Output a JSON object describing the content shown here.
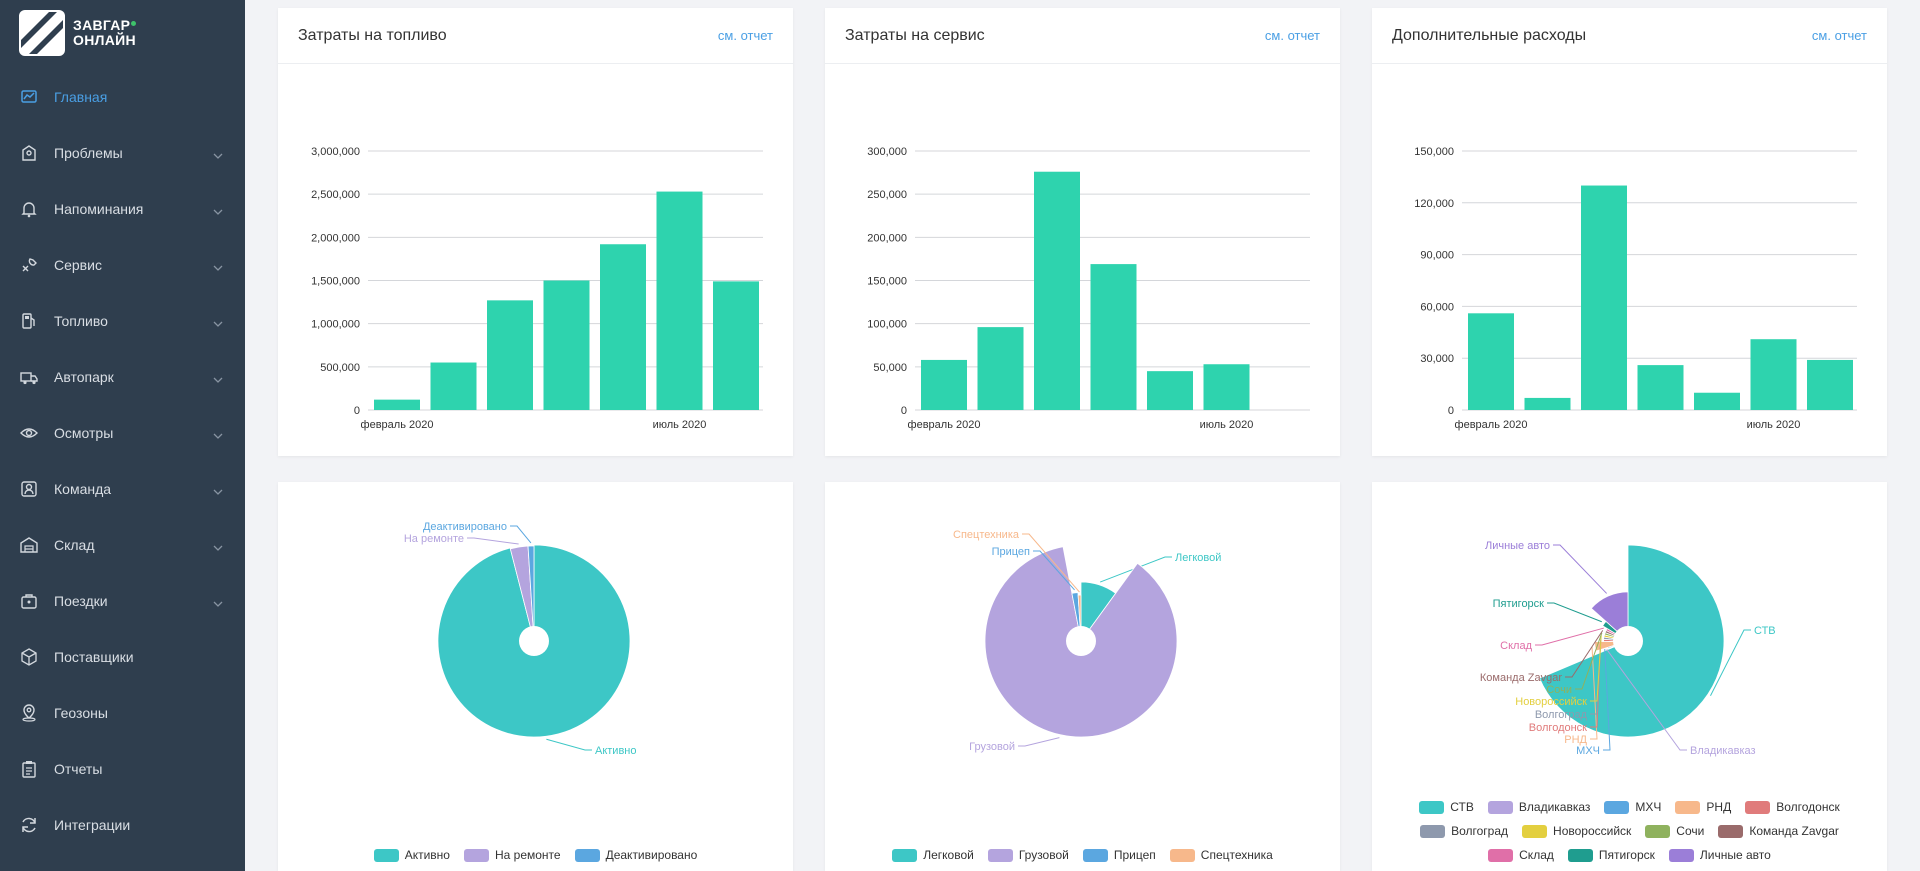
{
  "app": {
    "logo_line1": "ЗАВГАР",
    "logo_line2": "ОНЛАЙН",
    "accent": "#4a9fe4",
    "sidebar_bg": "#2f3e4e",
    "bar_color": "#2ed3ae"
  },
  "sidebar": {
    "items": [
      {
        "label": "Главная",
        "icon": "dashboard-icon",
        "active": true,
        "chevron": false
      },
      {
        "label": "Проблемы",
        "icon": "problems-icon",
        "active": false,
        "chevron": true
      },
      {
        "label": "Напоминания",
        "icon": "bell-icon",
        "active": false,
        "chevron": true
      },
      {
        "label": "Сервис",
        "icon": "service-icon",
        "active": false,
        "chevron": true
      },
      {
        "label": "Топливо",
        "icon": "fuel-icon",
        "active": false,
        "chevron": true
      },
      {
        "label": "Автопарк",
        "icon": "truck-icon",
        "active": false,
        "chevron": true
      },
      {
        "label": "Осмотры",
        "icon": "eye-icon",
        "active": false,
        "chevron": true
      },
      {
        "label": "Команда",
        "icon": "team-icon",
        "active": false,
        "chevron": true
      },
      {
        "label": "Склад",
        "icon": "warehouse-icon",
        "active": false,
        "chevron": true
      },
      {
        "label": "Поездки",
        "icon": "trips-icon",
        "active": false,
        "chevron": true
      },
      {
        "label": "Поставщики",
        "icon": "box-icon",
        "active": false,
        "chevron": false
      },
      {
        "label": "Геозоны",
        "icon": "geozone-icon",
        "active": false,
        "chevron": false
      },
      {
        "label": "Отчеты",
        "icon": "clipboard-icon",
        "active": false,
        "chevron": false
      },
      {
        "label": "Интеграции",
        "icon": "sync-icon",
        "active": false,
        "chevron": false
      }
    ]
  },
  "cards": [
    {
      "title": "Затраты на топливо",
      "link": "см. отчет"
    },
    {
      "title": "Затраты на сервис",
      "link": "см. отчет"
    },
    {
      "title": "Дополнительные расходы",
      "link": "см. отчет"
    }
  ],
  "chart_data": [
    {
      "type": "bar",
      "title": "Затраты на топливо",
      "categories": [
        "февраль 2020",
        "",
        "",
        "",
        "",
        "июль 2020",
        ""
      ],
      "values": [
        120000,
        550000,
        1270000,
        1500000,
        1920000,
        2530000,
        1490000
      ],
      "ylim": [
        0,
        3000000
      ],
      "yticks": [
        0,
        500000,
        1000000,
        1500000,
        2000000,
        2500000,
        3000000
      ],
      "ytick_labels": [
        "0",
        "500,000",
        "1,000,000",
        "1,500,000",
        "2,000,000",
        "2,500,000",
        "3,000,000"
      ],
      "grid": true
    },
    {
      "type": "bar",
      "title": "Затраты на сервис",
      "categories": [
        "февраль 2020",
        "",
        "",
        "",
        "",
        "июль 2020",
        ""
      ],
      "values": [
        58000,
        96000,
        276000,
        169000,
        45000,
        53000,
        0
      ],
      "ylim": [
        0,
        300000
      ],
      "yticks": [
        0,
        50000,
        100000,
        150000,
        200000,
        250000,
        300000
      ],
      "ytick_labels": [
        "0",
        "50,000",
        "100,000",
        "150,000",
        "200,000",
        "250,000",
        "300,000"
      ],
      "grid": true
    },
    {
      "type": "bar",
      "title": "Дополнительные расходы",
      "categories": [
        "февраль 2020",
        "",
        "",
        "",
        "",
        "июль 2020",
        ""
      ],
      "values": [
        56000,
        7000,
        130000,
        26000,
        10000,
        41000,
        29000
      ],
      "ylim": [
        0,
        150000
      ],
      "yticks": [
        0,
        30000,
        60000,
        90000,
        120000,
        150000
      ],
      "ytick_labels": [
        "0",
        "30,000",
        "60,000",
        "90,000",
        "120,000",
        "150,000"
      ],
      "grid": true
    },
    {
      "type": "pie",
      "slices": [
        {
          "label": "Активно",
          "value": 96,
          "color": "#3dc7c6"
        },
        {
          "label": "На ремонте",
          "value": 3,
          "color": "#b4a4de"
        },
        {
          "label": "Деактивировано",
          "value": 1,
          "color": "#5ba7e0"
        }
      ]
    },
    {
      "type": "pie",
      "slices": [
        {
          "label": "Легковой",
          "value": 10,
          "color": "#3dc7c6"
        },
        {
          "label": "Грузовой",
          "value": 87,
          "color": "#b4a4de"
        },
        {
          "label": "Прицеп",
          "value": 2,
          "color": "#5ba7e0"
        },
        {
          "label": "Спецтехника",
          "value": 1,
          "color": "#f7b88b"
        }
      ]
    },
    {
      "type": "pie",
      "slices": [
        {
          "label": "СТВ",
          "value": 46,
          "color": "#3dc7c6"
        },
        {
          "label": "Владикавказ",
          "value": 0.4,
          "color": "#b4a4de"
        },
        {
          "label": "МХЧ",
          "value": 0.6,
          "color": "#5ba7e0"
        },
        {
          "label": "РНД",
          "value": 3,
          "color": "#f7b88b"
        },
        {
          "label": "Волгодонск",
          "value": 1,
          "color": "#e07b7b"
        },
        {
          "label": "Волгоград",
          "value": 1,
          "color": "#8e99ad"
        },
        {
          "label": "Новороссийск",
          "value": 1,
          "color": "#e3cf3f"
        },
        {
          "label": "Сочи",
          "value": 1,
          "color": "#8fb25e"
        },
        {
          "label": "Команда Zavgar",
          "value": 1,
          "color": "#9a6b6b"
        },
        {
          "label": "Склад",
          "value": 1,
          "color": "#e06fa8"
        },
        {
          "label": "Пятигорск",
          "value": 2,
          "color": "#1f9d8f"
        },
        {
          "label": "Личные авто",
          "value": 9,
          "color": "#9b7ed8"
        }
      ]
    }
  ]
}
